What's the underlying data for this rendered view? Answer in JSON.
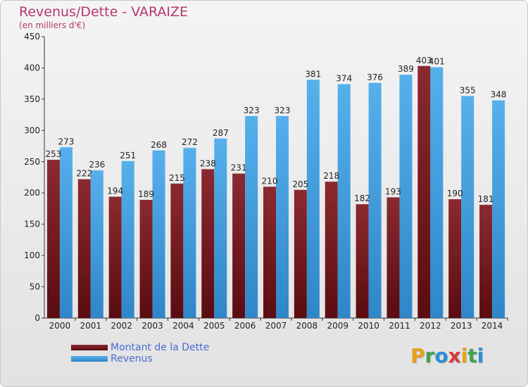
{
  "header": {
    "title": "Revenus/Dette - VARAIZE",
    "subtitle": "(en milliers d'€)"
  },
  "colors": {
    "dette": "#7a1d22",
    "revenus": "#3f9fe0",
    "title": "#b5386e",
    "legend_text": "#4a6ad4"
  },
  "chart_data": {
    "type": "bar",
    "title": "Revenus/Dette - VARAIZE",
    "subtitle": "(en milliers d'€)",
    "categories": [
      "2000",
      "2001",
      "2002",
      "2003",
      "2004",
      "2005",
      "2006",
      "2007",
      "2008",
      "2009",
      "2010",
      "2011",
      "2012",
      "2013",
      "2014"
    ],
    "series": [
      {
        "name": "Montant de la Dette",
        "values": [
          253,
          222,
          194,
          189,
          215,
          238,
          231,
          210,
          205,
          218,
          182,
          193,
          403,
          190,
          181
        ]
      },
      {
        "name": "Revenus",
        "values": [
          273,
          236,
          251,
          268,
          272,
          287,
          323,
          323,
          381,
          374,
          376,
          389,
          401,
          355,
          348
        ]
      }
    ],
    "ylim": [
      0,
      450
    ],
    "yticks": [
      0,
      50,
      100,
      150,
      200,
      250,
      300,
      350,
      400,
      450
    ],
    "grid": false,
    "legend_position": "bottom-left"
  },
  "legend": {
    "items": [
      {
        "label": "Montant de la Dette"
      },
      {
        "label": "Revenus"
      }
    ]
  },
  "logo": {
    "letters": [
      {
        "char": "P",
        "color": "#e8a11a"
      },
      {
        "char": "r",
        "color": "#3fa34d"
      },
      {
        "char": "o",
        "color": "#2b8fd6"
      },
      {
        "char": "x",
        "color": "#d93a3a"
      },
      {
        "char": "i",
        "color": "#e8a11a"
      },
      {
        "char": "t",
        "color": "#3fa34d"
      },
      {
        "char": "i",
        "color": "#2b8fd6"
      }
    ]
  }
}
